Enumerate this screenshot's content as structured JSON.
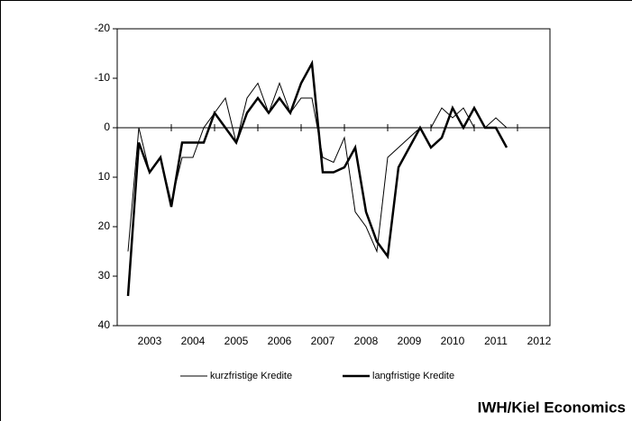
{
  "chart_data": {
    "type": "line",
    "source": "IWH/Kiel Economics",
    "x": [
      2003,
      2003.25,
      2003.5,
      2003.75,
      2004,
      2004.25,
      2004.5,
      2004.75,
      2005,
      2005.25,
      2005.5,
      2005.75,
      2006,
      2006.25,
      2006.5,
      2006.75,
      2007,
      2007.25,
      2007.5,
      2007.75,
      2008,
      2008.25,
      2008.5,
      2008.75,
      2009,
      2009.25,
      2009.5,
      2009.75,
      2010,
      2010.25,
      2010.5,
      2010.75,
      2011,
      2011.25,
      2011.5,
      2011.75
    ],
    "series": [
      {
        "name": "kurzfristige Kredite",
        "color": "#000000",
        "width": 1,
        "values": [
          25,
          0,
          9,
          6,
          15,
          6,
          6,
          0,
          -3,
          -6,
          3,
          -6,
          -9,
          -3,
          -9,
          -3,
          -6,
          -6,
          6,
          7,
          2,
          17,
          20,
          25,
          6,
          4,
          2,
          0,
          0,
          -4,
          -2,
          -4,
          0,
          0,
          -2,
          0
        ]
      },
      {
        "name": "langfristige Kredite",
        "color": "#000000",
        "width": 2.5,
        "values": [
          34,
          3,
          9,
          6,
          16,
          3,
          3,
          3,
          -3,
          0,
          3,
          -3,
          -6,
          -3,
          -6,
          -3,
          -9,
          -13,
          9,
          9,
          8,
          4,
          17,
          23,
          26,
          8,
          4,
          0,
          4,
          2,
          -4,
          0,
          -4,
          0,
          0,
          4
        ]
      }
    ],
    "xlim": [
      2002.75,
      2012.75
    ],
    "xticks": [
      {
        "value": 2003.5,
        "label": "2003"
      },
      {
        "value": 2004.5,
        "label": "2004"
      },
      {
        "value": 2005.5,
        "label": "2005"
      },
      {
        "value": 2006.5,
        "label": "2006"
      },
      {
        "value": 2007.5,
        "label": "2007"
      },
      {
        "value": 2008.5,
        "label": "2008"
      },
      {
        "value": 2009.5,
        "label": "2009"
      },
      {
        "value": 2010.5,
        "label": "2010"
      },
      {
        "value": 2011.5,
        "label": "2011"
      },
      {
        "value": 2012.5,
        "label": "2012"
      }
    ],
    "ylim": [
      -20,
      40
    ],
    "y_inverted": true,
    "yticks": [
      -20,
      -10,
      0,
      10,
      20,
      30,
      40
    ]
  }
}
